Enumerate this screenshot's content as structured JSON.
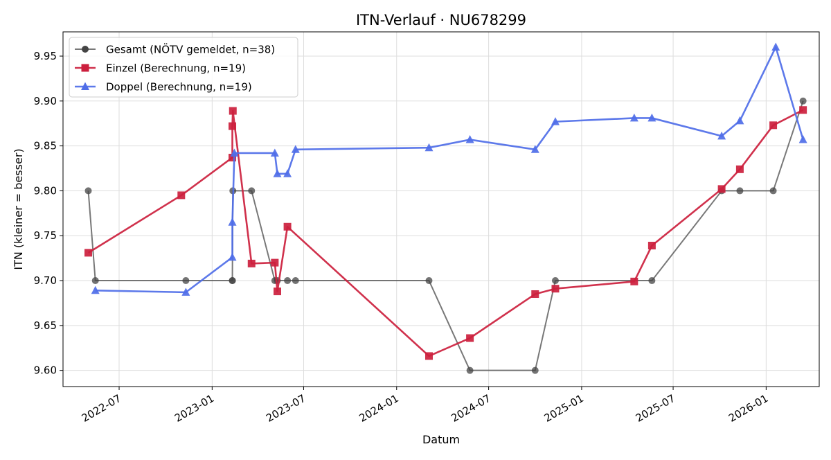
{
  "chart_data": {
    "type": "line",
    "title": "ITN-Verlauf · NU678299",
    "xlabel": "Datum",
    "ylabel": "ITN  (kleiner = besser)",
    "x_axis_type": "date",
    "xlim": [
      "2022-03-12",
      "2026-04-16"
    ],
    "ylim": [
      9.582,
      9.977
    ],
    "y_ticks": [
      9.6,
      9.65,
      9.7,
      9.75,
      9.8,
      9.85,
      9.9,
      9.95
    ],
    "y_tick_labels": [
      "9.60",
      "9.65",
      "9.70",
      "9.75",
      "9.80",
      "9.85",
      "9.90",
      "9.95"
    ],
    "x_ticks": [
      "2022-07-01",
      "2023-01-01",
      "2023-07-01",
      "2024-01-01",
      "2024-07-01",
      "2025-01-01",
      "2025-07-01",
      "2026-01-01"
    ],
    "x_tick_labels": [
      "2022-07",
      "2023-01",
      "2023-07",
      "2024-01",
      "2024-07",
      "2025-01",
      "2025-07",
      "2026-01"
    ],
    "grid": true,
    "legend_position": "top-left",
    "series": [
      {
        "name": "Gesamt (NÖTV gemeldet, n=38)",
        "color": "#444444",
        "marker": "circle",
        "points": [
          [
            "2022-05-01",
            9.8
          ],
          [
            "2022-05-15",
            9.7
          ],
          [
            "2022-11-10",
            9.7
          ],
          [
            "2023-02-10",
            9.7
          ],
          [
            "2023-02-10",
            9.7
          ],
          [
            "2023-02-11",
            9.8
          ],
          [
            "2023-03-20",
            9.8
          ],
          [
            "2023-05-05",
            9.7
          ],
          [
            "2023-05-10",
            9.7
          ],
          [
            "2023-05-30",
            9.7
          ],
          [
            "2023-06-15",
            9.7
          ],
          [
            "2024-03-05",
            9.7
          ],
          [
            "2024-05-25",
            9.6
          ],
          [
            "2024-10-01",
            9.6
          ],
          [
            "2024-11-10",
            9.7
          ],
          [
            "2025-05-20",
            9.7
          ],
          [
            "2025-10-05",
            9.8
          ],
          [
            "2025-11-10",
            9.8
          ],
          [
            "2026-01-15",
            9.8
          ],
          [
            "2026-03-15",
            9.9
          ]
        ]
      },
      {
        "name": "Einzel (Berechnung, n=19)",
        "color": "#cc1f3d",
        "marker": "square",
        "points": [
          [
            "2022-05-01",
            9.731
          ],
          [
            "2022-11-01",
            9.795
          ],
          [
            "2023-02-10",
            9.837
          ],
          [
            "2023-02-10",
            9.872
          ],
          [
            "2023-02-11",
            9.889
          ],
          [
            "2023-03-20",
            9.719
          ],
          [
            "2023-05-05",
            9.72
          ],
          [
            "2023-05-10",
            9.688
          ],
          [
            "2023-05-30",
            9.76
          ],
          [
            "2024-03-05",
            9.616
          ],
          [
            "2024-05-25",
            9.636
          ],
          [
            "2024-10-01",
            9.685
          ],
          [
            "2024-11-10",
            9.691
          ],
          [
            "2025-04-15",
            9.699
          ],
          [
            "2025-05-20",
            9.739
          ],
          [
            "2025-10-05",
            9.802
          ],
          [
            "2025-11-10",
            9.824
          ],
          [
            "2026-01-15",
            9.873
          ],
          [
            "2026-03-15",
            9.89
          ]
        ]
      },
      {
        "name": "Doppel (Berechnung, n=19)",
        "color": "#4f6ee8",
        "marker": "triangle",
        "points": [
          [
            "2022-05-15",
            9.689
          ],
          [
            "2022-11-10",
            9.687
          ],
          [
            "2023-02-10",
            9.726
          ],
          [
            "2023-02-10",
            9.765
          ],
          [
            "2023-02-14",
            9.842
          ],
          [
            "2023-05-05",
            9.842
          ],
          [
            "2023-05-10",
            9.819
          ],
          [
            "2023-05-30",
            9.819
          ],
          [
            "2023-06-15",
            9.846
          ],
          [
            "2024-03-05",
            9.848
          ],
          [
            "2024-05-25",
            9.857
          ],
          [
            "2024-10-01",
            9.846
          ],
          [
            "2024-11-10",
            9.877
          ],
          [
            "2025-04-15",
            9.881
          ],
          [
            "2025-05-20",
            9.881
          ],
          [
            "2025-10-05",
            9.861
          ],
          [
            "2025-11-10",
            9.878
          ],
          [
            "2026-01-20",
            9.96
          ],
          [
            "2026-03-15",
            9.857
          ]
        ]
      }
    ]
  }
}
